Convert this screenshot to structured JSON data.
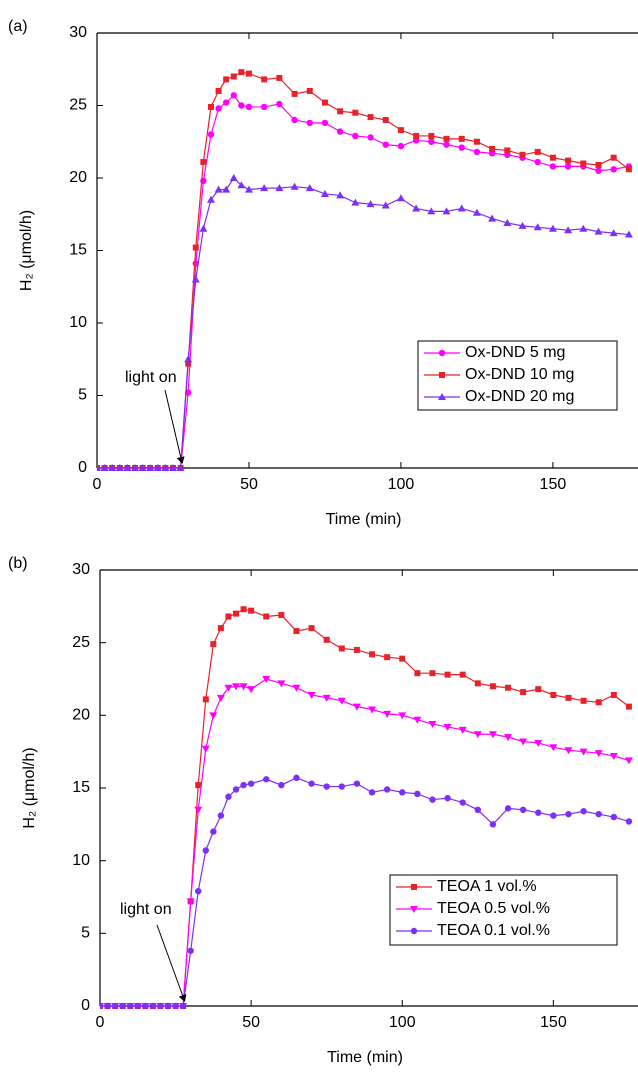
{
  "chart_data": [
    {
      "type": "line",
      "panel_label": "(a)",
      "x_label": "Time (min)",
      "y_label": "H₂ (μmol/h)",
      "annotation": "light on",
      "annotation_x": 28,
      "annotation_y": 0,
      "xlim": [
        0,
        178
      ],
      "ylim": [
        0,
        30
      ],
      "xticks": [
        0,
        50,
        100,
        150
      ],
      "yticks": [
        0,
        5,
        10,
        15,
        20,
        25,
        30
      ],
      "x": [
        0,
        2.5,
        5,
        7.5,
        10,
        12.5,
        15,
        17.5,
        20,
        22.5,
        25,
        27.5,
        30,
        32.5,
        35,
        37.5,
        40,
        42.5,
        45,
        47.5,
        50,
        55,
        60,
        65,
        70,
        75,
        80,
        85,
        90,
        95,
        100,
        105,
        110,
        115,
        120,
        125,
        130,
        135,
        140,
        145,
        150,
        155,
        160,
        165,
        170,
        175
      ],
      "series": [
        {
          "name": "Ox-DND 5 mg",
          "color": "#ff00ff",
          "marker": "circle",
          "values": [
            0,
            0,
            0,
            0,
            0,
            0,
            0,
            0,
            0,
            0,
            0,
            0,
            5.2,
            14.1,
            19.8,
            23,
            24.8,
            25.2,
            25.7,
            25,
            24.9,
            24.9,
            25.1,
            24,
            23.8,
            23.8,
            23.2,
            22.9,
            22.8,
            22.3,
            22.2,
            22.6,
            22.5,
            22.3,
            22.1,
            21.8,
            21.7,
            21.6,
            21.4,
            21.1,
            20.8,
            20.8,
            20.8,
            20.5,
            20.6,
            20.8
          ]
        },
        {
          "name": "Ox-DND 10 mg",
          "color": "#e8222a",
          "marker": "square",
          "values": [
            0,
            0,
            0,
            0,
            0,
            0,
            0,
            0,
            0,
            0,
            0,
            0,
            7.2,
            15.2,
            21.1,
            24.9,
            26,
            26.8,
            27,
            27.3,
            27.2,
            26.8,
            26.9,
            25.8,
            26,
            25.2,
            24.6,
            24.5,
            24.2,
            24,
            23.3,
            22.9,
            22.9,
            22.7,
            22.7,
            22.5,
            22,
            21.9,
            21.6,
            21.8,
            21.4,
            21.2,
            21,
            20.9,
            21.4,
            20.6
          ]
        },
        {
          "name": "Ox-DND 20 mg",
          "color": "#7b2ff7",
          "marker": "triangle-up",
          "values": [
            0,
            0,
            0,
            0,
            0,
            0,
            0,
            0,
            0,
            0,
            0,
            0,
            7.5,
            13,
            16.5,
            18.5,
            19.2,
            19.2,
            20,
            19.5,
            19.2,
            19.3,
            19.3,
            19.4,
            19.3,
            18.9,
            18.8,
            18.3,
            18.2,
            18.1,
            18.6,
            17.9,
            17.7,
            17.7,
            17.9,
            17.6,
            17.2,
            16.9,
            16.7,
            16.6,
            16.5,
            16.4,
            16.5,
            16.3,
            16.2,
            16.1
          ]
        }
      ]
    },
    {
      "type": "line",
      "panel_label": "(b)",
      "x_label": "Time (min)",
      "y_label": "H₂ (μmol/h)",
      "annotation": "light on",
      "annotation_x": 28,
      "annotation_y": 0,
      "xlim": [
        0,
        178
      ],
      "ylim": [
        0,
        30
      ],
      "xticks": [
        0,
        50,
        100,
        150
      ],
      "yticks": [
        0,
        5,
        10,
        15,
        20,
        25,
        30
      ],
      "x": [
        0,
        2.5,
        5,
        7.5,
        10,
        12.5,
        15,
        17.5,
        20,
        22.5,
        25,
        27.5,
        30,
        32.5,
        35,
        37.5,
        40,
        42.5,
        45,
        47.5,
        50,
        55,
        60,
        65,
        70,
        75,
        80,
        85,
        90,
        95,
        100,
        105,
        110,
        115,
        120,
        125,
        130,
        135,
        140,
        145,
        150,
        155,
        160,
        165,
        170,
        175
      ],
      "series": [
        {
          "name": "TEOA 1 vol.%",
          "color": "#e8222a",
          "marker": "square",
          "values": [
            0,
            0,
            0,
            0,
            0,
            0,
            0,
            0,
            0,
            0,
            0,
            0,
            7.2,
            15.2,
            21.1,
            24.9,
            26,
            26.8,
            27,
            27.3,
            27.2,
            26.8,
            26.9,
            25.8,
            26,
            25.2,
            24.6,
            24.5,
            24.2,
            24,
            23.9,
            22.9,
            22.9,
            22.8,
            22.8,
            22.2,
            22,
            21.9,
            21.6,
            21.8,
            21.4,
            21.2,
            21,
            20.9,
            21.4,
            20.6
          ]
        },
        {
          "name": "TEOA 0.5 vol.%",
          "color": "#ff00ff",
          "marker": "triangle-down",
          "values": [
            0,
            0,
            0,
            0,
            0,
            0,
            0,
            0,
            0,
            0,
            0,
            0,
            7.2,
            13.5,
            17.7,
            20,
            21.2,
            21.9,
            22,
            22,
            21.8,
            22.5,
            22.2,
            21.9,
            21.4,
            21.2,
            21,
            20.6,
            20.4,
            20.1,
            20,
            19.7,
            19.4,
            19.2,
            19,
            18.7,
            18.7,
            18.5,
            18.2,
            18.1,
            17.8,
            17.6,
            17.5,
            17.4,
            17.2,
            16.9
          ]
        },
        {
          "name": "TEOA 0.1 vol.%",
          "color": "#7b2ff7",
          "marker": "circle",
          "values": [
            0,
            0,
            0,
            0,
            0,
            0,
            0,
            0,
            0,
            0,
            0,
            0,
            3.8,
            7.9,
            10.7,
            12,
            13.1,
            14.4,
            14.9,
            15.2,
            15.3,
            15.6,
            15.2,
            15.7,
            15.3,
            15.1,
            15.1,
            15.3,
            14.7,
            14.9,
            14.7,
            14.6,
            14.2,
            14.3,
            14,
            13.5,
            12.5,
            13.6,
            13.5,
            13.3,
            13.1,
            13.2,
            13.4,
            13.2,
            13,
            12.7
          ]
        }
      ]
    }
  ]
}
